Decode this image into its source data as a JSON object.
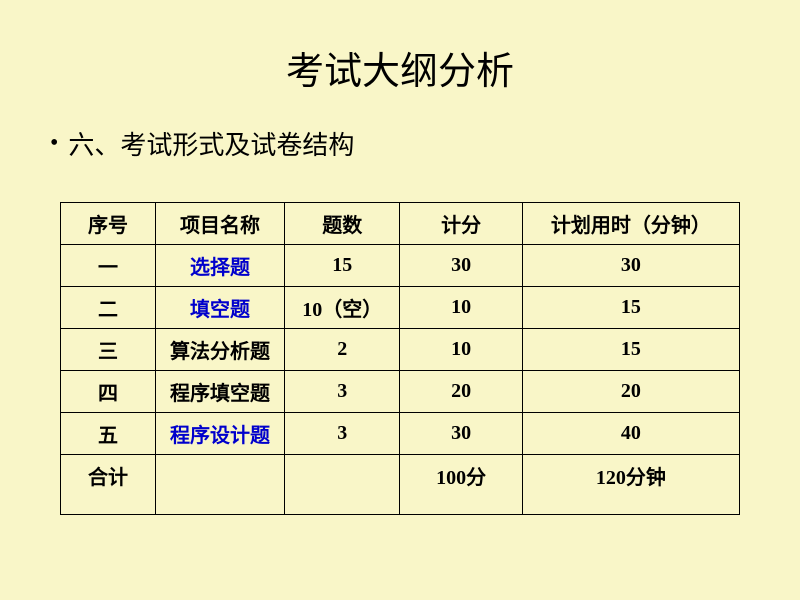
{
  "title": "考试大纲分析",
  "subtitle": "六、考试形式及试卷结构",
  "bullet": "•",
  "table": {
    "headers": [
      "序号",
      "项目名称",
      "题数",
      "计分",
      "计划用时（分钟）"
    ],
    "rows": [
      {
        "num": "一",
        "name": "选择题",
        "name_blue": true,
        "count": "15",
        "score": "30",
        "time": "30"
      },
      {
        "num": "二",
        "name": "填空题",
        "name_blue": true,
        "count": "10（空）",
        "score": "10",
        "time": "15"
      },
      {
        "num": "三",
        "name": "算法分析题",
        "name_blue": false,
        "count": "2",
        "score": "10",
        "time": "15"
      },
      {
        "num": "四",
        "name": "程序填空题",
        "name_blue": false,
        "count": "3",
        "score": "20",
        "time": "20"
      },
      {
        "num": "五",
        "name": "程序设计题",
        "name_blue": true,
        "count": "3",
        "score": "30",
        "time": "40"
      }
    ],
    "total": {
      "label": "合计",
      "score": "100分",
      "time": "120分钟"
    }
  },
  "styling": {
    "background_color": "#f9f6c8",
    "text_color": "#000000",
    "link_color": "#0000cc",
    "border_color": "#000000",
    "title_fontsize": 38,
    "subtitle_fontsize": 26,
    "table_fontsize": 20,
    "column_widths_percent": [
      14,
      19,
      17,
      18,
      32
    ]
  }
}
